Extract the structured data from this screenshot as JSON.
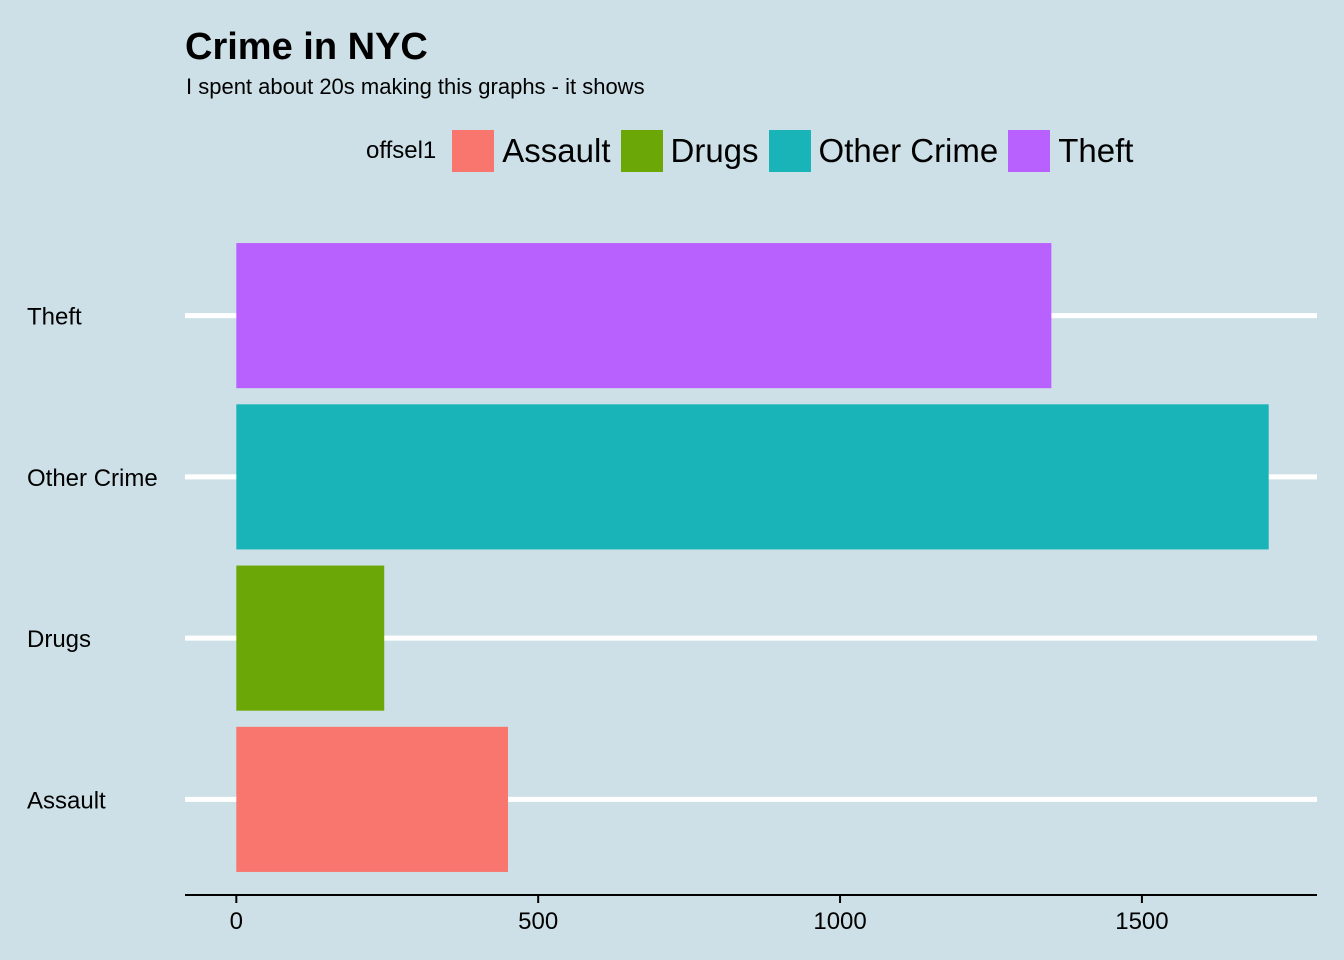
{
  "chart_data": {
    "type": "bar",
    "orientation": "horizontal",
    "title": "Crime in NYC",
    "subtitle": "I spent about 20s making this graphs - it shows",
    "xlabel": "",
    "ylabel": "",
    "legend": {
      "title": "offsel1",
      "placement": "top",
      "entries": [
        "Assault",
        "Drugs",
        "Other Crime",
        "Theft"
      ]
    },
    "categories": [
      "Assault",
      "Drugs",
      "Other Crime",
      "Theft"
    ],
    "values": [
      450,
      245,
      1710,
      1350
    ],
    "colors": [
      "#f8766d",
      "#6ba707",
      "#19b4b8",
      "#b961fe"
    ],
    "xlim": [
      -85,
      1790
    ],
    "xticks": [
      0,
      500,
      1000,
      1500
    ],
    "grid": "major horizontal lines only",
    "background": "#cde0e7"
  }
}
